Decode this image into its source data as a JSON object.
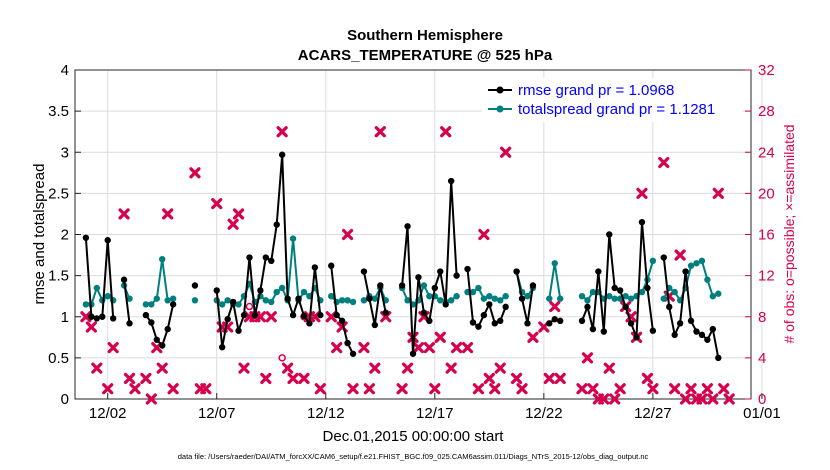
{
  "chart_data": {
    "type": "line",
    "title_line1": "Southern Hemisphere",
    "title_line2": "ACARS_TEMPERATURE @ 525 hPa",
    "xlabel": "Dec.01,2015 00:00:00 start",
    "ylabel_left": "rmse and totalspread",
    "ylabel_right": "# of obs: o=possible; ×=assimilated",
    "footnote": "data file: /Users/raeder/DAI/ATM_forcXX/CAM6_setup/f.e21.FHIST_BGC.f09_025.CAM6assim.011/Diags_NTrS_2015-12/obs_diag_output.nc",
    "xlim": [
      0.5,
      31.5
    ],
    "ylim_left": [
      0,
      4
    ],
    "ylim_right": [
      0,
      32
    ],
    "x_ticks": [
      {
        "day": 2,
        "label": "12/02"
      },
      {
        "day": 7,
        "label": "12/07"
      },
      {
        "day": 12,
        "label": "12/12"
      },
      {
        "day": 17,
        "label": "12/17"
      },
      {
        "day": 22,
        "label": "12/22"
      },
      {
        "day": 27,
        "label": "12/27"
      },
      {
        "day": 32,
        "label": "01/01"
      }
    ],
    "y_ticks_left": [
      "0",
      "0.5",
      "1",
      "1.5",
      "2",
      "2.5",
      "3",
      "3.5",
      "4"
    ],
    "y_ticks_right": [
      "0",
      "4",
      "8",
      "12",
      "16",
      "20",
      "24",
      "28",
      "32"
    ],
    "colors": {
      "rmse": "#000000",
      "spread": "#007f7f",
      "obs": "#d6004f",
      "legend_text": "#0000ff"
    },
    "series": [
      {
        "name": "rmse",
        "legend": "rmse grand pr = 1.0968",
        "points": [
          [
            1,
            1.96
          ],
          [
            1.25,
            1.0
          ],
          [
            1.5,
            0.98
          ],
          [
            1.75,
            1.0
          ],
          [
            2,
            1.93
          ],
          [
            2.25,
            0.98
          ],
          [
            2.75,
            1.45
          ],
          [
            3,
            0.92
          ],
          [
            3.75,
            1.02
          ],
          [
            4,
            0.93
          ],
          [
            4.25,
            0.72
          ],
          [
            4.5,
            0.65
          ],
          [
            4.75,
            0.85
          ],
          [
            5,
            1.15
          ],
          [
            6,
            1.38
          ],
          [
            7,
            1.32
          ],
          [
            7.25,
            0.63
          ],
          [
            7.5,
            0.97
          ],
          [
            7.75,
            1.18
          ],
          [
            8,
            0.83
          ],
          [
            8.25,
            1.02
          ],
          [
            8.5,
            1.72
          ],
          [
            8.75,
            1.02
          ],
          [
            9,
            1.32
          ],
          [
            9.25,
            1.72
          ],
          [
            9.5,
            1.68
          ],
          [
            9.75,
            2.12
          ],
          [
            10,
            2.97
          ],
          [
            10.25,
            1.22
          ],
          [
            10.5,
            1.02
          ],
          [
            10.75,
            1.22
          ],
          [
            11,
            1.01
          ],
          [
            11.25,
            0.92
          ],
          [
            11.5,
            1.6
          ],
          [
            11.75,
            1.02
          ],
          [
            12.25,
            1.62
          ],
          [
            12.5,
            1.02
          ],
          [
            12.75,
            0.95
          ],
          [
            13,
            0.68
          ],
          [
            13.25,
            0.55
          ],
          [
            13.75,
            1.55
          ],
          [
            14,
            1.22
          ],
          [
            14.25,
            0.9
          ],
          [
            14.5,
            1.38
          ],
          [
            14.75,
            1.05
          ],
          [
            15.5,
            1.38
          ],
          [
            15.75,
            2.1
          ],
          [
            16,
            0.55
          ],
          [
            16.25,
            1.48
          ],
          [
            16.5,
            1.05
          ],
          [
            16.75,
            0.95
          ],
          [
            17,
            1.35
          ],
          [
            17.25,
            1.55
          ],
          [
            17.5,
            1.15
          ],
          [
            17.75,
            2.65
          ],
          [
            18,
            1.5
          ],
          [
            18.5,
            1.58
          ],
          [
            18.75,
            0.93
          ],
          [
            19,
            0.88
          ],
          [
            19.25,
            1.02
          ],
          [
            19.5,
            1.15
          ],
          [
            19.75,
            0.92
          ],
          [
            20,
            0.95
          ],
          [
            20.25,
            1.12
          ],
          [
            20.75,
            1.55
          ],
          [
            21,
            1.22
          ],
          [
            21.25,
            0.92
          ],
          [
            21.5,
            1.38
          ],
          [
            22.25,
            0.92
          ],
          [
            22.5,
            0.97
          ],
          [
            22.75,
            0.95
          ],
          [
            23.75,
            0.95
          ],
          [
            24,
            1.12
          ],
          [
            24.25,
            0.85
          ],
          [
            24.5,
            1.55
          ],
          [
            24.75,
            0.82
          ],
          [
            25,
            2.0
          ],
          [
            25.25,
            1.35
          ],
          [
            25.5,
            1.32
          ],
          [
            25.75,
            1.12
          ],
          [
            26,
            0.92
          ],
          [
            26.25,
            0.75
          ],
          [
            26.5,
            2.15
          ],
          [
            26.75,
            1.35
          ],
          [
            27,
            0.83
          ],
          [
            27.5,
            1.72
          ],
          [
            27.75,
            1.12
          ],
          [
            28,
            0.78
          ],
          [
            28.25,
            0.92
          ],
          [
            28.5,
            1.55
          ],
          [
            28.75,
            0.95
          ],
          [
            29,
            0.82
          ],
          [
            29.25,
            0.78
          ],
          [
            29.5,
            0.72
          ],
          [
            29.75,
            0.85
          ],
          [
            30,
            0.5
          ]
        ]
      },
      {
        "name": "totalspread",
        "legend": "totalspread grand pr = 1.1281",
        "points": [
          [
            1,
            1.15
          ],
          [
            1.25,
            1.15
          ],
          [
            1.5,
            1.35
          ],
          [
            1.75,
            1.2
          ],
          [
            2,
            1.25
          ],
          [
            2.25,
            1.2
          ],
          [
            2.75,
            1.38
          ],
          [
            3,
            1.22
          ],
          [
            3.75,
            1.15
          ],
          [
            4,
            1.15
          ],
          [
            4.25,
            1.22
          ],
          [
            4.5,
            1.7
          ],
          [
            4.75,
            1.2
          ],
          [
            5,
            1.22
          ],
          [
            6,
            1.2
          ],
          [
            7,
            1.2
          ],
          [
            7.25,
            1.15
          ],
          [
            7.5,
            1.2
          ],
          [
            7.75,
            1.15
          ],
          [
            8,
            1.15
          ],
          [
            8.25,
            1.25
          ],
          [
            8.5,
            1.4
          ],
          [
            8.75,
            1.18
          ],
          [
            9,
            1.25
          ],
          [
            9.25,
            1.2
          ],
          [
            9.5,
            1.18
          ],
          [
            9.75,
            1.3
          ],
          [
            10,
            1.35
          ],
          [
            10.25,
            1.2
          ],
          [
            10.5,
            1.95
          ],
          [
            10.75,
            1.2
          ],
          [
            11,
            1.3
          ],
          [
            11.25,
            1.25
          ],
          [
            11.5,
            1.35
          ],
          [
            11.75,
            1.2
          ],
          [
            12.25,
            1.25
          ],
          [
            12.5,
            1.18
          ],
          [
            12.75,
            1.2
          ],
          [
            13,
            1.2
          ],
          [
            13.25,
            1.18
          ],
          [
            13.75,
            1.2
          ],
          [
            14,
            1.25
          ],
          [
            14.25,
            1.22
          ],
          [
            14.5,
            1.35
          ],
          [
            14.75,
            1.2
          ],
          [
            15.5,
            1.35
          ],
          [
            15.75,
            1.2
          ],
          [
            16,
            1.15
          ],
          [
            16.25,
            1.2
          ],
          [
            16.5,
            1.38
          ],
          [
            16.75,
            1.25
          ],
          [
            17,
            1.25
          ],
          [
            17.25,
            1.2
          ],
          [
            17.5,
            1.18
          ],
          [
            17.75,
            1.2
          ],
          [
            18,
            1.25
          ],
          [
            18.5,
            1.3
          ],
          [
            18.75,
            1.3
          ],
          [
            19,
            1.35
          ],
          [
            19.25,
            1.22
          ],
          [
            19.5,
            1.25
          ],
          [
            19.75,
            1.22
          ],
          [
            20,
            1.2
          ],
          [
            20.25,
            1.25
          ],
          [
            20.75,
            1.55
          ],
          [
            21,
            1.3
          ],
          [
            21.25,
            1.25
          ],
          [
            21.5,
            1.35
          ],
          [
            22.25,
            1.22
          ],
          [
            22.5,
            1.65
          ],
          [
            22.75,
            1.22
          ],
          [
            23.75,
            1.25
          ],
          [
            24,
            1.2
          ],
          [
            24.25,
            1.3
          ],
          [
            24.5,
            1.3
          ],
          [
            24.75,
            1.22
          ],
          [
            25,
            1.25
          ],
          [
            25.25,
            1.22
          ],
          [
            25.5,
            1.22
          ],
          [
            25.75,
            1.25
          ],
          [
            26,
            1.22
          ],
          [
            26.25,
            1.25
          ],
          [
            26.5,
            1.3
          ],
          [
            26.75,
            1.45
          ],
          [
            27,
            1.68
          ],
          [
            27.5,
            1.22
          ],
          [
            27.75,
            1.35
          ],
          [
            28,
            1.3
          ],
          [
            28.25,
            1.2
          ],
          [
            28.5,
            1.35
          ],
          [
            28.75,
            1.62
          ],
          [
            29,
            1.65
          ],
          [
            29.25,
            1.68
          ],
          [
            29.5,
            1.45
          ],
          [
            29.75,
            1.25
          ],
          [
            30,
            1.28
          ]
        ]
      }
    ],
    "obs_assimilated": [
      [
        1,
        8
      ],
      [
        1.25,
        7
      ],
      [
        1.5,
        3
      ],
      [
        2,
        1
      ],
      [
        2.25,
        5
      ],
      [
        2.75,
        18
      ],
      [
        3,
        2
      ],
      [
        3.25,
        1
      ],
      [
        3.75,
        2
      ],
      [
        4,
        0
      ],
      [
        4.25,
        5
      ],
      [
        4.5,
        3
      ],
      [
        4.75,
        18
      ],
      [
        5,
        1
      ],
      [
        6,
        22
      ],
      [
        6.25,
        1
      ],
      [
        6.5,
        1
      ],
      [
        7,
        19
      ],
      [
        7.25,
        7
      ],
      [
        7.5,
        7
      ],
      [
        7.75,
        17
      ],
      [
        8,
        18
      ],
      [
        8.25,
        3
      ],
      [
        8.5,
        8
      ],
      [
        8.75,
        8
      ],
      [
        9,
        8
      ],
      [
        9.25,
        2
      ],
      [
        9.5,
        8
      ],
      [
        10,
        26
      ],
      [
        10.25,
        3
      ],
      [
        10.5,
        2
      ],
      [
        11,
        2
      ],
      [
        11.25,
        8
      ],
      [
        11.5,
        8
      ],
      [
        11.75,
        1
      ],
      [
        12.25,
        8
      ],
      [
        12.5,
        5
      ],
      [
        12.75,
        7
      ],
      [
        13,
        16
      ],
      [
        13.25,
        1
      ],
      [
        13.75,
        5
      ],
      [
        14,
        1
      ],
      [
        14.25,
        3
      ],
      [
        14.5,
        26
      ],
      [
        14.75,
        8
      ],
      [
        15.5,
        1
      ],
      [
        15.75,
        3
      ],
      [
        16,
        6
      ],
      [
        16.25,
        5
      ],
      [
        16.5,
        8
      ],
      [
        16.75,
        5
      ],
      [
        17,
        1
      ],
      [
        17.25,
        6
      ],
      [
        17.5,
        26
      ],
      [
        17.75,
        3
      ],
      [
        18,
        5
      ],
      [
        18.5,
        5
      ],
      [
        19,
        1
      ],
      [
        19.25,
        16
      ],
      [
        19.5,
        2
      ],
      [
        19.75,
        1
      ],
      [
        20,
        3
      ],
      [
        20.25,
        24
      ],
      [
        20.75,
        2
      ],
      [
        21,
        1
      ],
      [
        21.5,
        6
      ],
      [
        22,
        7
      ],
      [
        22.25,
        2
      ],
      [
        22.5,
        9
      ],
      [
        22.75,
        2
      ],
      [
        23.75,
        1
      ],
      [
        24,
        4
      ],
      [
        24.25,
        1
      ],
      [
        24.5,
        0
      ],
      [
        24.75,
        0
      ],
      [
        25,
        3
      ],
      [
        25.25,
        0
      ],
      [
        25.5,
        1
      ],
      [
        25.75,
        9
      ],
      [
        26,
        8
      ],
      [
        26.25,
        6
      ],
      [
        26.5,
        20
      ],
      [
        26.75,
        2
      ],
      [
        27,
        1
      ],
      [
        27.5,
        23
      ],
      [
        27.75,
        10
      ],
      [
        28,
        1
      ],
      [
        28.25,
        14
      ],
      [
        28.5,
        0
      ],
      [
        28.75,
        1
      ],
      [
        29,
        0
      ],
      [
        29.25,
        0
      ],
      [
        29.5,
        1
      ],
      [
        29.75,
        0
      ],
      [
        30,
        20
      ],
      [
        30.25,
        1
      ],
      [
        30.5,
        0
      ]
    ],
    "obs_possible": [
      [
        8.5,
        9
      ],
      [
        10,
        4
      ],
      [
        11,
        8
      ]
    ]
  }
}
